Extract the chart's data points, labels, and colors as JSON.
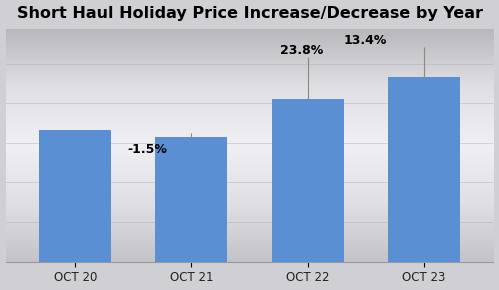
{
  "categories": [
    "OCT 20",
    "OCT 21",
    "OCT 22",
    "OCT 23"
  ],
  "values": [
    62,
    59,
    77,
    87
  ],
  "bar_color": "#5B8FD4",
  "title": "Short Haul Holiday Price Increase/Decrease by Year",
  "background_top": "#C8C8CC",
  "background_mid": "#E8E8EC",
  "background_bot": "#C0C0C4",
  "plot_bg": "#D4D4D8",
  "ylim": [
    0,
    110
  ],
  "title_fontsize": 11.5,
  "label_fontsize": 9,
  "annotation_color": "#888888",
  "grid_color": "#BBBBBB",
  "n_gridlines": 6
}
